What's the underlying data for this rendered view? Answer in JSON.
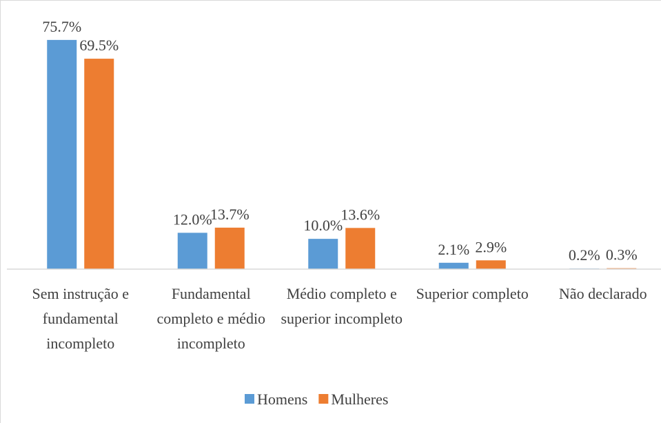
{
  "chart_data": {
    "type": "bar",
    "categories": [
      "Sem instrução e fundamental incompleto",
      "Fundamental completo e médio incompleto",
      "Médio completo e superior incompleto",
      "Superior completo",
      "Não declarado"
    ],
    "series": [
      {
        "name": "Homens",
        "color": "#5b9bd5",
        "values": [
          75.7,
          12.0,
          10.0,
          2.1,
          0.2
        ],
        "value_labels": [
          "75.7%",
          "12.0%",
          "10.0%",
          "2.1%",
          "0.2%"
        ]
      },
      {
        "name": "Mulheres",
        "color": "#ed7d31",
        "values": [
          69.5,
          13.7,
          13.6,
          2.9,
          0.3
        ],
        "value_labels": [
          "69.5%",
          "13.7%",
          "13.6%",
          "2.9%",
          "0.3%"
        ]
      }
    ],
    "ylim": [
      0,
      80
    ],
    "legend": "bottom"
  }
}
